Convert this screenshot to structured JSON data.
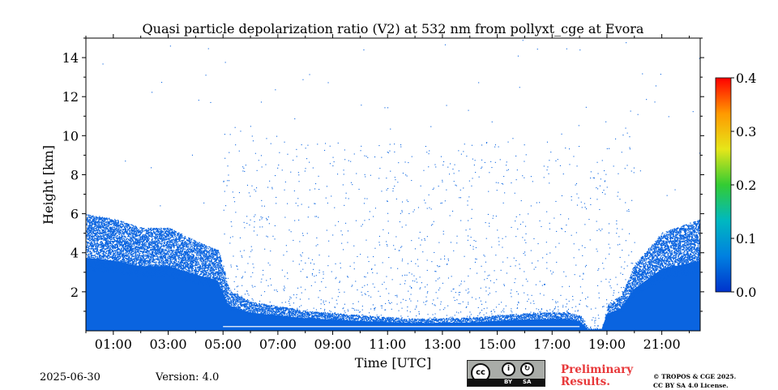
{
  "chart_data": {
    "type": "heatmap",
    "title": "Quasi particle depolarization ratio (V2) at 532 nm from pollyxt_cge at Evora",
    "xlabel": "Time [UTC]",
    "ylabel": "Height [km]",
    "xlim": [
      0,
      22.4
    ],
    "ylim": [
      0,
      15
    ],
    "x_ticks": [
      {
        "v": 1,
        "label": "01:00"
      },
      {
        "v": 3,
        "label": "03:00"
      },
      {
        "v": 5,
        "label": "05:00"
      },
      {
        "v": 7,
        "label": "07:00"
      },
      {
        "v": 9,
        "label": "09:00"
      },
      {
        "v": 11,
        "label": "11:00"
      },
      {
        "v": 13,
        "label": "13:00"
      },
      {
        "v": 15,
        "label": "15:00"
      },
      {
        "v": 17,
        "label": "17:00"
      },
      {
        "v": 19,
        "label": "19:00"
      },
      {
        "v": 21,
        "label": "21:00"
      }
    ],
    "y_ticks": [
      {
        "v": 2,
        "label": "2"
      },
      {
        "v": 4,
        "label": "4"
      },
      {
        "v": 6,
        "label": "6"
      },
      {
        "v": 8,
        "label": "8"
      },
      {
        "v": 10,
        "label": "10"
      },
      {
        "v": 12,
        "label": "12"
      },
      {
        "v": 14,
        "label": "14"
      }
    ],
    "colorbar": {
      "range": [
        0.0,
        0.4
      ],
      "ticks": [
        {
          "v": 0.0,
          "label": "0.0"
        },
        {
          "v": 0.1,
          "label": "0.1"
        },
        {
          "v": 0.2,
          "label": "0.2"
        },
        {
          "v": 0.3,
          "label": "0.3"
        },
        {
          "v": 0.4,
          "label": "0.4"
        }
      ],
      "colors": [
        "#0033cc",
        "#0080e0",
        "#00b8c0",
        "#33cc33",
        "#e6e619",
        "#ff9900",
        "#ff0000"
      ]
    },
    "dominant_value": 0.02,
    "dominant_color": "#0a64e0",
    "layer_profile": [
      {
        "t": 0.0,
        "top": 5.2
      },
      {
        "t": 1.0,
        "top": 5.0
      },
      {
        "t": 2.0,
        "top": 4.6
      },
      {
        "t": 3.0,
        "top": 4.6
      },
      {
        "t": 4.0,
        "top": 4.0
      },
      {
        "t": 4.8,
        "top": 3.6
      },
      {
        "t": 5.2,
        "top": 1.8
      },
      {
        "t": 6.0,
        "top": 1.3
      },
      {
        "t": 8.0,
        "top": 0.9
      },
      {
        "t": 10.0,
        "top": 0.7
      },
      {
        "t": 12.0,
        "top": 0.55
      },
      {
        "t": 14.0,
        "top": 0.6
      },
      {
        "t": 16.0,
        "top": 0.8
      },
      {
        "t": 17.5,
        "top": 0.85
      },
      {
        "t": 18.0,
        "top": 0.7
      },
      {
        "t": 18.3,
        "top": 0.1
      },
      {
        "t": 18.8,
        "top": 0.1
      },
      {
        "t": 19.0,
        "top": 1.2
      },
      {
        "t": 19.5,
        "top": 1.6
      },
      {
        "t": 20.0,
        "top": 3.0
      },
      {
        "t": 21.0,
        "top": 4.4
      },
      {
        "t": 22.4,
        "top": 5.0
      }
    ]
  },
  "footer": {
    "date": "2025-06-30",
    "version": "Version: 4.0",
    "preliminary_line1": "Preliminary",
    "preliminary_line2": "Results.",
    "license_line1": "© TROPOS & CGE 2025.",
    "license_line2": "CC BY SA 4.0 License.",
    "cc_logo": "cc",
    "cc_by": "BY",
    "cc_sa": "SA"
  }
}
